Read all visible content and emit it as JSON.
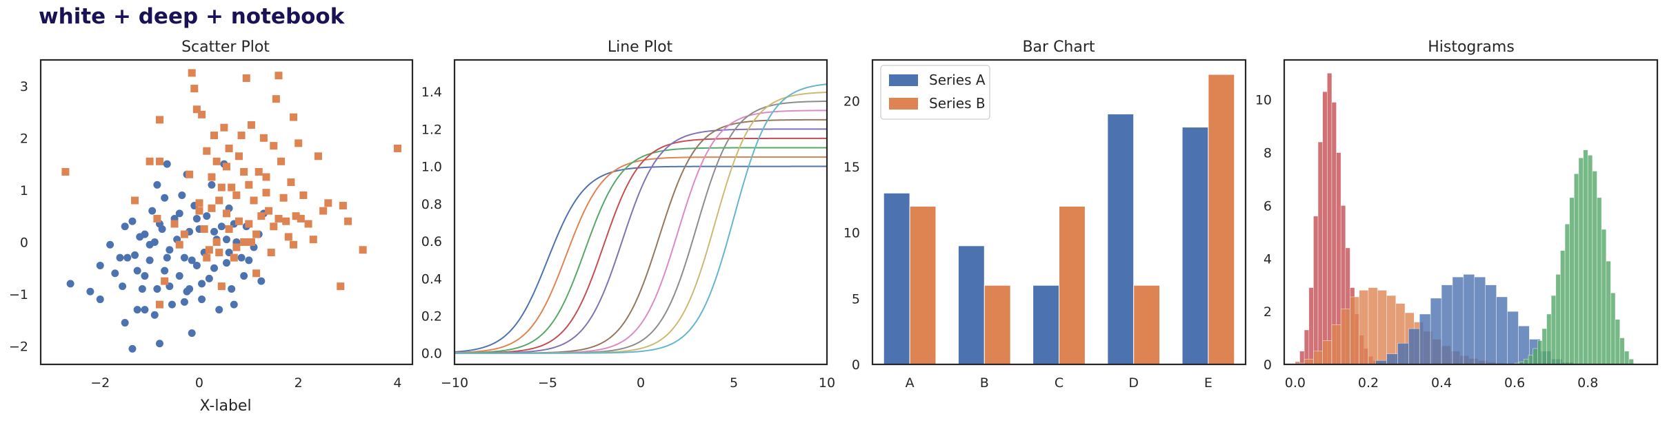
{
  "suptitle": "white + deep + notebook",
  "palette": [
    "#4c72b0",
    "#dd8452",
    "#55a868",
    "#c44e52",
    "#8172b3",
    "#937860",
    "#da8bc3",
    "#8c8c8c",
    "#ccb974",
    "#64b5cd"
  ],
  "chart_data": [
    {
      "type": "scatter",
      "title": "Scatter Plot",
      "xlabel": "X-label",
      "ylabel": "",
      "xlim": [
        -3.2,
        4.3
      ],
      "ylim": [
        -2.35,
        3.5
      ],
      "xticks": [
        -2,
        0,
        2,
        4
      ],
      "yticks": [
        -2,
        -1,
        0,
        1,
        2,
        3
      ],
      "series": [
        {
          "marker": "circle",
          "color": "#4c72b0",
          "points": [
            [
              -2.6,
              -0.8
            ],
            [
              -2.0,
              -1.1
            ],
            [
              -2.0,
              -0.45
            ],
            [
              -1.8,
              -0.05
            ],
            [
              -1.5,
              0.3
            ],
            [
              -1.6,
              -0.3
            ],
            [
              -1.55,
              -0.85
            ],
            [
              -1.5,
              -1.55
            ],
            [
              -1.35,
              -2.05
            ],
            [
              -1.35,
              0.4
            ],
            [
              -1.3,
              -0.25
            ],
            [
              -1.25,
              -0.55
            ],
            [
              -1.2,
              0.1
            ],
            [
              -1.1,
              -1.3
            ],
            [
              -1.1,
              -0.65
            ],
            [
              -1.1,
              0.15
            ],
            [
              -1.0,
              -0.35
            ],
            [
              -0.95,
              0.6
            ],
            [
              -0.9,
              0.0
            ],
            [
              -0.85,
              -0.9
            ],
            [
              -0.85,
              1.1
            ],
            [
              -0.8,
              -1.95
            ],
            [
              -0.75,
              0.25
            ],
            [
              -0.7,
              0.85
            ],
            [
              -0.7,
              -0.55
            ],
            [
              -0.65,
              1.5
            ],
            [
              -0.6,
              -0.15
            ],
            [
              -0.55,
              -1.2
            ],
            [
              -0.5,
              0.45
            ],
            [
              -0.45,
              0.05
            ],
            [
              -0.4,
              -0.65
            ],
            [
              -0.35,
              0.9
            ],
            [
              -0.3,
              -0.3
            ],
            [
              -0.25,
              1.3
            ],
            [
              -0.25,
              -0.95
            ],
            [
              -0.2,
              0.2
            ],
            [
              -0.15,
              -1.75
            ],
            [
              -0.1,
              0.7
            ],
            [
              -0.05,
              -0.45
            ],
            [
              0.0,
              0.25
            ],
            [
              0.05,
              -1.1
            ],
            [
              0.1,
              -0.2
            ],
            [
              0.15,
              0.5
            ],
            [
              0.2,
              -0.7
            ],
            [
              0.25,
              1.1
            ],
            [
              0.3,
              -0.5
            ],
            [
              0.35,
              0.05
            ],
            [
              0.4,
              -1.3
            ],
            [
              0.45,
              0.3
            ],
            [
              0.5,
              1.5
            ],
            [
              0.55,
              -0.4
            ],
            [
              0.6,
              0.65
            ],
            [
              0.65,
              -0.9
            ],
            [
              0.7,
              -1.2
            ],
            [
              0.75,
              0.0
            ],
            [
              0.8,
              0.4
            ],
            [
              0.85,
              -0.3
            ],
            [
              0.9,
              -0.65
            ],
            [
              1.1,
              -0.1
            ],
            [
              1.2,
              0.15
            ],
            [
              1.25,
              -0.75
            ],
            [
              1.3,
              0.55
            ],
            [
              -1.7,
              -0.6
            ],
            [
              -0.9,
              -1.4
            ],
            [
              -0.6,
              -0.85
            ],
            [
              -0.2,
              -0.9
            ],
            [
              0.3,
              0.2
            ],
            [
              0.55,
              0.05
            ],
            [
              -1.45,
              -0.3
            ],
            [
              -1.15,
              -0.9
            ],
            [
              -0.65,
              -0.3
            ],
            [
              0.05,
              -0.8
            ],
            [
              0.6,
              -0.2
            ],
            [
              1.0,
              -0.35
            ],
            [
              -2.2,
              -0.95
            ],
            [
              -0.4,
              0.55
            ],
            [
              0.7,
              0.35
            ],
            [
              -0.05,
              0.45
            ],
            [
              -0.8,
              0.35
            ],
            [
              -1.0,
              -0.05
            ],
            [
              0.45,
              -0.85
            ],
            [
              -0.3,
              -1.15
            ],
            [
              0.95,
              0.3
            ],
            [
              -1.25,
              -1.3
            ],
            [
              -0.15,
              -0.35
            ]
          ]
        },
        {
          "marker": "square",
          "color": "#dd8452",
          "points": [
            [
              -2.7,
              1.35
            ],
            [
              -1.3,
              0.8
            ],
            [
              -1.0,
              1.55
            ],
            [
              -0.8,
              1.55
            ],
            [
              -0.85,
              0.45
            ],
            [
              -0.8,
              -1.2
            ],
            [
              -0.7,
              -0.75
            ],
            [
              -0.8,
              2.35
            ],
            [
              -0.5,
              0.35
            ],
            [
              -0.4,
              -0.05
            ],
            [
              -0.3,
              0.15
            ],
            [
              -0.2,
              1.3
            ],
            [
              -0.15,
              3.25
            ],
            [
              -0.1,
              2.95
            ],
            [
              -0.05,
              2.55
            ],
            [
              0.0,
              0.75
            ],
            [
              0.05,
              2.45
            ],
            [
              0.1,
              0.25
            ],
            [
              0.15,
              -0.3
            ],
            [
              0.15,
              1.75
            ],
            [
              0.2,
              -0.15
            ],
            [
              0.25,
              0.65
            ],
            [
              0.3,
              2.05
            ],
            [
              0.35,
              0.0
            ],
            [
              0.35,
              1.55
            ],
            [
              0.4,
              -0.2
            ],
            [
              0.45,
              1.05
            ],
            [
              0.45,
              -0.85
            ],
            [
              0.5,
              2.2
            ],
            [
              0.55,
              1.45
            ],
            [
              0.55,
              0.55
            ],
            [
              0.6,
              0.25
            ],
            [
              0.65,
              1.05
            ],
            [
              0.7,
              -0.3
            ],
            [
              0.75,
              0.9
            ],
            [
              0.8,
              1.65
            ],
            [
              0.8,
              0.4
            ],
            [
              0.85,
              2.05
            ],
            [
              0.9,
              0.0
            ],
            [
              0.9,
              1.35
            ],
            [
              0.95,
              3.15
            ],
            [
              1.0,
              1.1
            ],
            [
              1.0,
              0.35
            ],
            [
              1.05,
              2.25
            ],
            [
              1.1,
              0.8
            ],
            [
              1.15,
              0.15
            ],
            [
              1.15,
              -0.6
            ],
            [
              1.2,
              1.35
            ],
            [
              1.25,
              0.5
            ],
            [
              1.3,
              2.0
            ],
            [
              1.35,
              1.25
            ],
            [
              1.4,
              0.6
            ],
            [
              1.45,
              -0.2
            ],
            [
              1.5,
              0.3
            ],
            [
              1.5,
              1.85
            ],
            [
              1.55,
              2.75
            ],
            [
              1.6,
              0.45
            ],
            [
              1.6,
              3.2
            ],
            [
              1.65,
              1.55
            ],
            [
              1.7,
              0.85
            ],
            [
              1.75,
              0.4
            ],
            [
              1.8,
              0.1
            ],
            [
              1.85,
              1.15
            ],
            [
              1.9,
              2.4
            ],
            [
              1.95,
              0.5
            ],
            [
              2.0,
              1.9
            ],
            [
              2.05,
              0.45
            ],
            [
              2.1,
              0.9
            ],
            [
              2.2,
              0.35
            ],
            [
              2.3,
              0.05
            ],
            [
              2.4,
              1.65
            ],
            [
              2.5,
              0.6
            ],
            [
              2.6,
              0.75
            ],
            [
              2.9,
              0.7
            ],
            [
              2.85,
              -0.85
            ],
            [
              3.0,
              0.4
            ],
            [
              3.3,
              -0.15
            ],
            [
              4.0,
              1.8
            ],
            [
              0.4,
              0.8
            ],
            [
              1.05,
              0.0
            ],
            [
              0.75,
              -0.1
            ],
            [
              0.25,
              1.25
            ],
            [
              1.35,
              0.95
            ],
            [
              0.6,
              1.8
            ],
            [
              1.9,
              -0.05
            ],
            [
              0.0,
              0.6
            ]
          ]
        }
      ]
    },
    {
      "type": "line",
      "title": "Line Plot",
      "xlabel": "",
      "ylabel": "",
      "xlim": [
        -10,
        10
      ],
      "ylim": [
        -0.06,
        1.57
      ],
      "xticks": [
        -10,
        -5,
        0,
        5,
        10
      ],
      "yticks": [
        0.0,
        0.2,
        0.4,
        0.6,
        0.8,
        1.0,
        1.2,
        1.4
      ],
      "ytick_labels": [
        "0.0",
        "0.2",
        "0.4",
        "0.6",
        "0.8",
        "1.0",
        "1.2",
        "1.4"
      ],
      "series": [
        {
          "amplitude": 1.0,
          "center": -5,
          "color": "#4c72b0"
        },
        {
          "amplitude": 1.05,
          "center": -4,
          "color": "#dd8452"
        },
        {
          "amplitude": 1.1,
          "center": -3,
          "color": "#55a868"
        },
        {
          "amplitude": 1.15,
          "center": -2,
          "color": "#c44e52"
        },
        {
          "amplitude": 1.2,
          "center": -1,
          "color": "#8172b3"
        },
        {
          "amplitude": 1.25,
          "center": 1,
          "color": "#937860"
        },
        {
          "amplitude": 1.3,
          "center": 2,
          "color": "#da8bc3"
        },
        {
          "amplitude": 1.35,
          "center": 3,
          "color": "#8c8c8c"
        },
        {
          "amplitude": 1.4,
          "center": 4,
          "color": "#ccb974"
        },
        {
          "amplitude": 1.45,
          "center": 5,
          "color": "#64b5cd"
        }
      ]
    },
    {
      "type": "bar",
      "title": "Bar Chart",
      "xlabel": "",
      "ylabel": "",
      "categories": [
        "A",
        "B",
        "C",
        "D",
        "E"
      ],
      "ylim": [
        0,
        23.1
      ],
      "yticks": [
        0,
        5,
        10,
        15,
        20
      ],
      "legend_position": "upper-left",
      "series": [
        {
          "name": "Series A",
          "values": [
            13,
            9,
            6,
            19,
            18
          ],
          "color": "#4c72b0"
        },
        {
          "name": "Series B",
          "values": [
            12,
            6,
            12,
            6,
            22
          ],
          "color": "#dd8452"
        }
      ]
    },
    {
      "type": "histogram",
      "title": "Histograms",
      "xlabel": "",
      "ylabel": "",
      "xlim": [
        -0.03,
        0.99
      ],
      "ylim": [
        0,
        11.5
      ],
      "xticks": [
        0.0,
        0.2,
        0.4,
        0.6,
        0.8
      ],
      "xtick_labels": [
        "0.0",
        "0.2",
        "0.4",
        "0.6",
        "0.8"
      ],
      "yticks": [
        0,
        2,
        4,
        6,
        8,
        10
      ],
      "series": [
        {
          "color": "#c44e52",
          "bins": [
            0.0,
            0.0125,
            0.025,
            0.0375,
            0.05,
            0.0625,
            0.075,
            0.0875,
            0.1,
            0.1125,
            0.125,
            0.1375,
            0.15,
            0.1625,
            0.175,
            0.1875,
            0.2,
            0.2125,
            0.225,
            0.2375,
            0.25,
            0.2625
          ],
          "heights": [
            0.1,
            0.5,
            1.3,
            2.9,
            5.6,
            8.4,
            10.3,
            11.0,
            9.9,
            8.0,
            6.0,
            4.4,
            2.9,
            1.9,
            1.1,
            0.6,
            0.3,
            0.15,
            0.08,
            0.04,
            0.02
          ]
        },
        {
          "color": "#dd8452",
          "bins": [
            0.0,
            0.025,
            0.05,
            0.075,
            0.1,
            0.125,
            0.15,
            0.175,
            0.2,
            0.225,
            0.25,
            0.275,
            0.3,
            0.325,
            0.35,
            0.375,
            0.4,
            0.425,
            0.45,
            0.475,
            0.5,
            0.525,
            0.55,
            0.575,
            0.6
          ],
          "heights": [
            0.05,
            0.2,
            0.5,
            0.9,
            1.5,
            2.1,
            2.55,
            2.8,
            2.9,
            2.8,
            2.6,
            2.3,
            1.95,
            1.6,
            1.25,
            0.95,
            0.7,
            0.5,
            0.33,
            0.22,
            0.14,
            0.08,
            0.05,
            0.03
          ]
        },
        {
          "color": "#4c72b0",
          "bins": [
            0.22,
            0.25,
            0.28,
            0.31,
            0.34,
            0.37,
            0.4,
            0.43,
            0.46,
            0.49,
            0.52,
            0.55,
            0.58,
            0.61,
            0.64,
            0.67,
            0.7,
            0.73,
            0.76
          ],
          "heights": [
            0.15,
            0.4,
            0.8,
            1.35,
            1.9,
            2.5,
            3.0,
            3.3,
            3.4,
            3.3,
            3.0,
            2.55,
            2.0,
            1.45,
            0.95,
            0.5,
            0.2,
            0.08
          ]
        },
        {
          "color": "#55a868",
          "bins": [
            0.6,
            0.6125,
            0.625,
            0.6375,
            0.65,
            0.6625,
            0.675,
            0.6875,
            0.7,
            0.7125,
            0.725,
            0.7375,
            0.75,
            0.7625,
            0.775,
            0.7875,
            0.8,
            0.8125,
            0.825,
            0.8375,
            0.85,
            0.8625,
            0.875,
            0.8875,
            0.9,
            0.9125,
            0.925
          ],
          "heights": [
            0.05,
            0.1,
            0.2,
            0.35,
            0.6,
            0.9,
            1.35,
            1.9,
            2.6,
            3.4,
            4.3,
            5.3,
            6.3,
            7.2,
            7.8,
            8.1,
            7.9,
            7.3,
            6.3,
            5.1,
            3.9,
            2.7,
            1.7,
            1.0,
            0.5,
            0.2
          ]
        }
      ]
    }
  ]
}
